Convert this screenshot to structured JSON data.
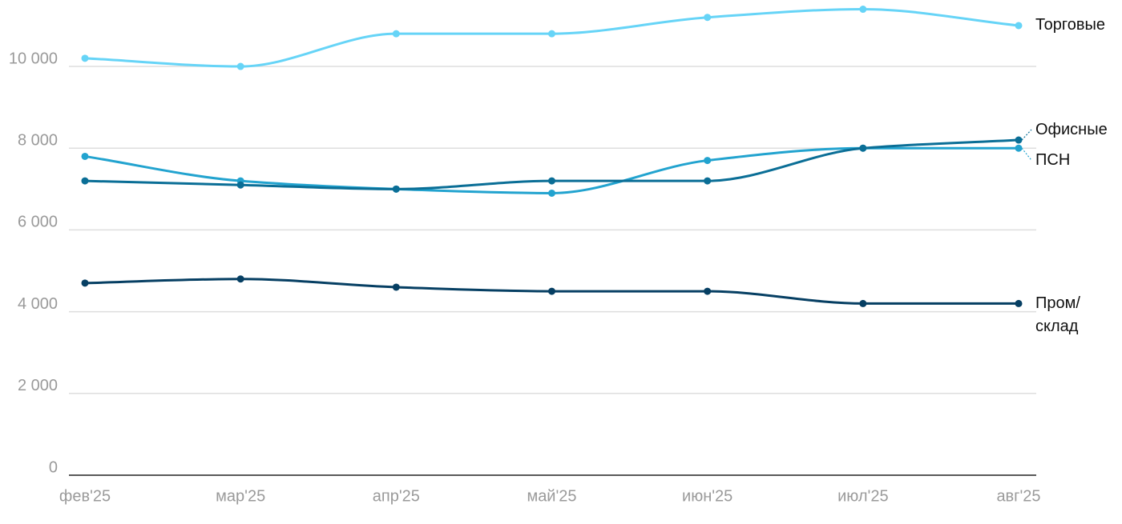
{
  "chart_data": {
    "type": "line",
    "categories": [
      "фев'25",
      "мар'25",
      "апр'25",
      "май'25",
      "июн'25",
      "июл'25",
      "авг'25"
    ],
    "series": [
      {
        "name": "Торговые",
        "color": "#66d4f7",
        "values": [
          10200,
          10000,
          10800,
          10800,
          11200,
          11400,
          11000
        ]
      },
      {
        "name": "Офисные",
        "color": "#0a6e96",
        "values": [
          7200,
          7100,
          7000,
          7200,
          7200,
          8000,
          8200
        ]
      },
      {
        "name": "ПСН",
        "color": "#22a3cf",
        "values": [
          7800,
          7200,
          7000,
          6900,
          7700,
          8000,
          8000
        ]
      },
      {
        "name": "Пром/\nсклад",
        "color": "#063f63",
        "values": [
          4700,
          4800,
          4600,
          4500,
          4500,
          4200,
          4200
        ]
      }
    ],
    "ylim": [
      0,
      11500
    ],
    "yticks": [
      0,
      {
        "value": 2000,
        "label": "2 000"
      },
      {
        "value": 4000,
        "label": "4 000"
      },
      {
        "value": 6000,
        "label": "6 000"
      },
      {
        "value": 8000,
        "label": "8 000"
      },
      {
        "value": 10000,
        "label": "10 000"
      }
    ],
    "grid": true
  }
}
